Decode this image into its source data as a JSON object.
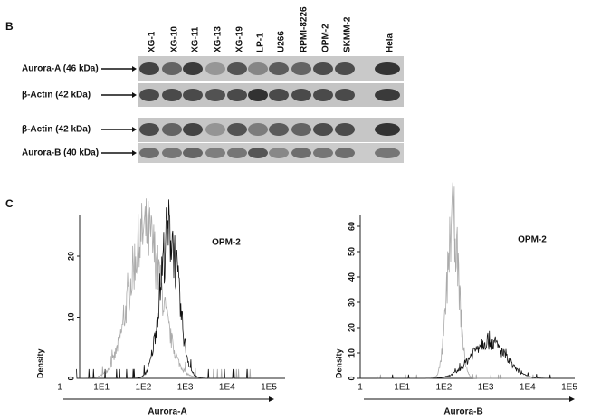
{
  "panel_b": {
    "label": "B",
    "lanes": [
      "XG-1",
      "XG-10",
      "XG-11",
      "XG-13",
      "XG-19",
      "LP-1",
      "U266",
      "RPMI-8226",
      "OPM-2",
      "SKMM-2",
      "Hela"
    ],
    "rows": [
      "Aurora-A (46 kDa)",
      "β-Actin (42 kDa)",
      "β-Actin (42 kDa)",
      "Aurora-B (40 kDa)"
    ]
  },
  "panel_c": {
    "label": "C",
    "plots": [
      {
        "title": "OPM-2",
        "xlabel": "Aurora-A",
        "ylabel": "Density",
        "xticks": [
          "1",
          "1E1",
          "1E2",
          "1E3",
          "1E4",
          "1E5"
        ],
        "yticks": [
          0,
          10,
          20
        ]
      },
      {
        "title": "OPM-2",
        "xlabel": "Aurora-B",
        "ylabel": "Density",
        "xticks": [
          "1",
          "1E1",
          "1E2",
          "1E3",
          "1E4",
          "1E5"
        ],
        "yticks": [
          0,
          10,
          20,
          30,
          40,
          50,
          60
        ]
      }
    ]
  }
}
